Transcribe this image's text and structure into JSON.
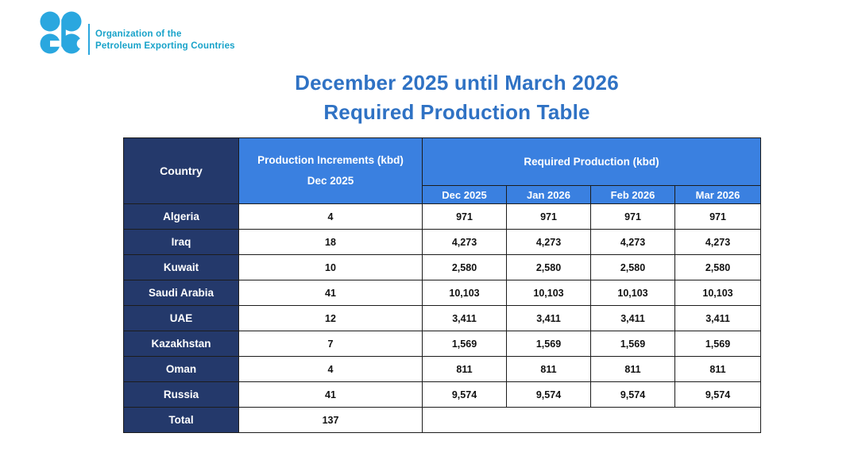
{
  "brand": {
    "logo_icon": "opec-emblem-icon",
    "logo_color": "#2AA7DF",
    "org_text_color": "#17A2C9",
    "org_name_line1": "Organization of the",
    "org_name_line2": "Petroleum Exporting Countries"
  },
  "title": {
    "line1": "December 2025 until March 2026",
    "line2": "Required Production Table",
    "color": "#2F72C4"
  },
  "table": {
    "columns": {
      "country_header": "Country",
      "increments_header_line1": "Production Increments (kbd)",
      "increments_header_line2": "Dec 2025",
      "required_group_header": "Required Production (kbd)",
      "month_headers": [
        "Dec 2025",
        "Jan 2026",
        "Feb 2026",
        "Mar 2026"
      ]
    },
    "colors": {
      "header_dark_navy": "#24396B",
      "header_light_blue": "#3A80E0",
      "border": "#1C1C1C",
      "header_text": "#FFFFFF",
      "cell_text": "#111111"
    },
    "rows": [
      {
        "country": "Algeria",
        "increment": "4",
        "required": [
          "971",
          "971",
          "971",
          "971"
        ]
      },
      {
        "country": "Iraq",
        "increment": "18",
        "required": [
          "4,273",
          "4,273",
          "4,273",
          "4,273"
        ]
      },
      {
        "country": "Kuwait",
        "increment": "10",
        "required": [
          "2,580",
          "2,580",
          "2,580",
          "2,580"
        ]
      },
      {
        "country": "Saudi Arabia",
        "increment": "41",
        "required": [
          "10,103",
          "10,103",
          "10,103",
          "10,103"
        ]
      },
      {
        "country": "UAE",
        "increment": "12",
        "required": [
          "3,411",
          "3,411",
          "3,411",
          "3,411"
        ]
      },
      {
        "country": "Kazakhstan",
        "increment": "7",
        "required": [
          "1,569",
          "1,569",
          "1,569",
          "1,569"
        ]
      },
      {
        "country": "Oman",
        "increment": "4",
        "required": [
          "811",
          "811",
          "811",
          "811"
        ]
      },
      {
        "country": "Russia",
        "increment": "41",
        "required": [
          "9,574",
          "9,574",
          "9,574",
          "9,574"
        ]
      }
    ],
    "total_row": {
      "label": "Total",
      "increment": "137"
    }
  },
  "chart_data": {
    "type": "table",
    "title": "December 2025 until March 2026 Required Production Table",
    "columns": [
      "Country",
      "Production Increments (kbd) Dec 2025",
      "Required Production (kbd) Dec 2025",
      "Required Production (kbd) Jan 2026",
      "Required Production (kbd) Feb 2026",
      "Required Production (kbd) Mar 2026"
    ],
    "rows": [
      [
        "Algeria",
        4,
        971,
        971,
        971,
        971
      ],
      [
        "Iraq",
        18,
        4273,
        4273,
        4273,
        4273
      ],
      [
        "Kuwait",
        10,
        2580,
        2580,
        2580,
        2580
      ],
      [
        "Saudi Arabia",
        41,
        10103,
        10103,
        10103,
        10103
      ],
      [
        "UAE",
        12,
        3411,
        3411,
        3411,
        3411
      ],
      [
        "Kazakhstan",
        7,
        1569,
        1569,
        1569,
        1569
      ],
      [
        "Oman",
        4,
        811,
        811,
        811,
        811
      ],
      [
        "Russia",
        41,
        9574,
        9574,
        9574,
        9574
      ],
      [
        "Total",
        137,
        null,
        null,
        null,
        null
      ]
    ]
  }
}
